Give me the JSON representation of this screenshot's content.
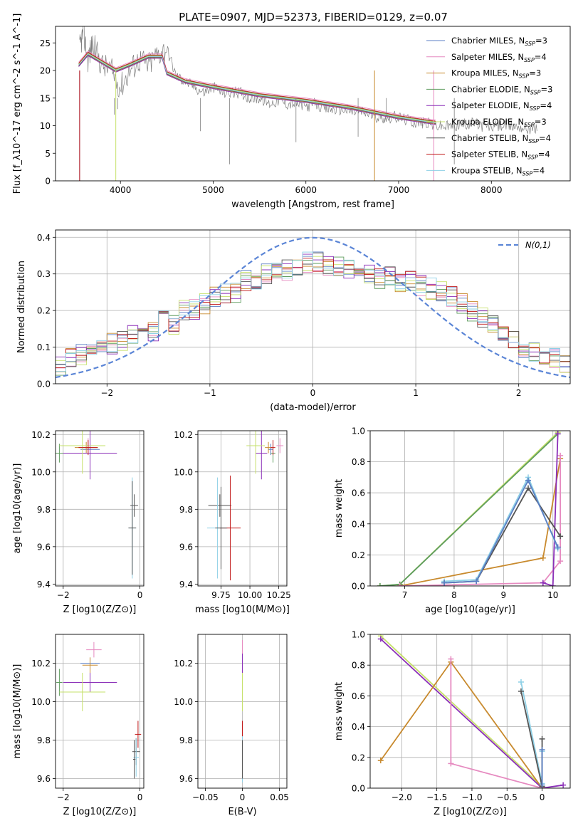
{
  "figure": {
    "title": "PLATE=0907, MJD=52373, FIBERID=0129, z=0.07"
  },
  "colors": {
    "chabrier_miles": "#5B7FC4",
    "salpeter_miles": "#E68AC0",
    "kroupa_miles": "#C88A2E",
    "chabrier_elodie": "#5E9C5E",
    "salpeter_elodie": "#8B2FB8",
    "kroupa_elodie": "#C6E06A",
    "chabrier_stelib": "#555555",
    "salpeter_stelib": "#C01818",
    "kroupa_stelib": "#8ED0E6",
    "data": "#808080",
    "normal": "#5B85D6",
    "grid": "#b0b0b0"
  },
  "chart_data": [
    {
      "id": "spectrum",
      "type": "line",
      "title": "PLATE=0907, MJD=52373, FIBERID=0129, z=0.07",
      "xlabel": "wavelength [Angstrom, rest frame]",
      "ylabel": "Flux [f_λ10^-17 erg cm^-2 s^-1 A^-1]",
      "xlim": [
        3300,
        8850
      ],
      "ylim": [
        0,
        28
      ],
      "xticks": [
        4000,
        5000,
        6000,
        7000,
        8000
      ],
      "yticks": [
        0,
        5,
        10,
        15,
        20,
        25
      ],
      "grid": false,
      "legend_position": "top-right",
      "data_series": {
        "name": "",
        "x": [
          3560,
          3600,
          3650,
          3700,
          3800,
          3900,
          4000,
          4100,
          4200,
          4300,
          4400,
          4500,
          4600,
          4700,
          4800,
          4900,
          5000,
          5100,
          5200,
          5300,
          5400,
          5500,
          5600,
          5700,
          5800,
          5900,
          6000,
          6100,
          6200,
          6300,
          6400,
          6500,
          6600,
          6700,
          6800,
          6900,
          7000,
          7100,
          7200,
          7300,
          7400,
          7500,
          7600,
          7700,
          7800,
          7900,
          8000,
          8100,
          8200,
          8300,
          8400,
          8500
        ],
        "y": [
          24,
          27,
          22,
          25,
          21,
          20,
          17,
          20,
          22,
          21,
          23,
          24,
          19,
          18,
          17,
          16,
          17,
          16,
          16,
          16,
          15,
          15,
          14,
          14.5,
          14,
          14,
          13.5,
          14,
          13,
          13,
          13,
          12.5,
          12.5,
          12,
          11.5,
          11.5,
          11.5,
          11,
          10.5,
          10.5,
          10,
          9.8,
          10,
          10.2,
          10.5,
          10,
          9.8,
          10,
          10,
          9.8,
          9.5,
          9.5
        ]
      },
      "series": [
        {
          "name": "Chabrier MILES, N_SSP=3",
          "color_key": "chabrier_miles",
          "offset": 0.0
        },
        {
          "name": "Salpeter MILES, N_SSP=4",
          "color_key": "salpeter_miles",
          "offset": 0.5
        },
        {
          "name": "Kroupa MILES, N_SSP=3",
          "color_key": "kroupa_miles",
          "offset": -0.2
        },
        {
          "name": "Chabrier ELODIE, N_SSP=3",
          "color_key": "chabrier_elodie",
          "offset": 0.2
        },
        {
          "name": "Salpeter ELODIE, N_SSP=4",
          "color_key": "salpeter_elodie",
          "offset": -0.3
        },
        {
          "name": "Kroupa ELODIE, N_SSP=3",
          "color_key": "kroupa_elodie",
          "offset": 0.1
        },
        {
          "name": "Chabrier STELIB, N_SSP=4",
          "color_key": "chabrier_stelib",
          "offset": -0.1
        },
        {
          "name": "Salpeter STELIB, N_SSP=4",
          "color_key": "salpeter_stelib",
          "offset": 0.3
        },
        {
          "name": "Kroupa STELIB, N_SSP=4",
          "color_key": "kroupa_stelib",
          "offset": 0.0
        }
      ],
      "model_x": [
        3550,
        3650,
        3800,
        3950,
        4100,
        4300,
        4450,
        4500,
        4700,
        5000,
        5500,
        6000,
        6500,
        7000,
        7400
      ],
      "model_y": [
        21,
        23,
        21.5,
        20,
        21,
        22.5,
        22.5,
        19.5,
        18,
        17,
        15.5,
        14.5,
        13.2,
        11.5,
        10.5
      ],
      "cutoffs": [
        {
          "series": "Kroupa ELODIE, N_SSP=3",
          "x": 3950
        },
        {
          "series": "Kroupa MILES, N_SSP=3",
          "x": 6740
        },
        {
          "series": "Salpeter MILES, N_SSP=4",
          "x": 7380
        },
        {
          "series": "Chabrier MILES, N_SSP=3",
          "x": 3560
        },
        {
          "series": "Salpeter STELIB, N_SSP=4",
          "x": 3560
        }
      ]
    },
    {
      "id": "residuals",
      "type": "histogram",
      "xlabel": "(data-model)/error",
      "ylabel": "Normed distribution",
      "xlim": [
        -2.5,
        2.5
      ],
      "ylim": [
        0,
        0.42
      ],
      "xticks": [
        -2,
        -1,
        0,
        1,
        2
      ],
      "yticks": [
        0.0,
        0.1,
        0.2,
        0.3,
        0.4
      ],
      "grid": true,
      "legend_position": "top-right",
      "reference_curve": {
        "name": "N(0,1)",
        "type": "normal",
        "mean": 0,
        "sigma": 1,
        "style": "dashed"
      },
      "bin_edges_start": -2.5,
      "bin_width": 0.1,
      "base_shape": [
        0.05,
        0.07,
        0.08,
        0.09,
        0.11,
        0.11,
        0.12,
        0.13,
        0.15,
        0.14,
        0.18,
        0.16,
        0.2,
        0.2,
        0.22,
        0.24,
        0.25,
        0.25,
        0.28,
        0.28,
        0.3,
        0.3,
        0.31,
        0.32,
        0.33,
        0.33,
        0.32,
        0.32,
        0.31,
        0.3,
        0.3,
        0.29,
        0.29,
        0.28,
        0.28,
        0.27,
        0.26,
        0.25,
        0.24,
        0.22,
        0.2,
        0.18,
        0.16,
        0.14,
        0.12,
        0.1,
        0.09,
        0.08,
        0.07,
        0.06
      ],
      "series": [
        {
          "name": "Chabrier MILES, N_SSP=3",
          "color_key": "chabrier_miles",
          "seed": 1
        },
        {
          "name": "Salpeter MILES, N_SSP=4",
          "color_key": "salpeter_miles",
          "seed": 2
        },
        {
          "name": "Kroupa MILES, N_SSP=3",
          "color_key": "kroupa_miles",
          "seed": 3
        },
        {
          "name": "Chabrier ELODIE, N_SSP=3",
          "color_key": "chabrier_elodie",
          "seed": 4
        },
        {
          "name": "Salpeter ELODIE, N_SSP=4",
          "color_key": "salpeter_elodie",
          "seed": 5
        },
        {
          "name": "Kroupa ELODIE, N_SSP=3",
          "color_key": "kroupa_elodie",
          "seed": 6
        },
        {
          "name": "Chabrier STELIB, N_SSP=4",
          "color_key": "chabrier_stelib",
          "seed": 7
        },
        {
          "name": "Salpeter STELIB, N_SSP=4",
          "color_key": "salpeter_stelib",
          "seed": 8
        },
        {
          "name": "Kroupa STELIB, N_SSP=4",
          "color_key": "kroupa_stelib",
          "seed": 9
        }
      ]
    },
    {
      "id": "age_vs_z",
      "type": "errorbar",
      "xlabel": "Z [log10(Z/Z⊙)]",
      "ylabel": "age  [log10(age/yr)]",
      "xlim": [
        -2.2,
        0.1
      ],
      "ylim": [
        9.39,
        10.22
      ],
      "xticks": [
        -2,
        0
      ],
      "yticks": [
        9.4,
        9.6,
        9.8,
        10.0,
        10.2
      ],
      "grid": true,
      "points": [
        {
          "color_key": "chabrier_miles",
          "x": -1.3,
          "y": 10.12,
          "xerr": 0.25,
          "yerr": 0.03
        },
        {
          "color_key": "salpeter_miles",
          "x": -1.35,
          "y": 10.14,
          "xerr": 0.2,
          "yerr": 0.04
        },
        {
          "color_key": "kroupa_miles",
          "x": -1.4,
          "y": 10.13,
          "xerr": 0.3,
          "yerr": 0.03
        },
        {
          "color_key": "chabrier_elodie",
          "x": -2.1,
          "y": 10.1,
          "xerr": 0.1,
          "yerr": 0.05
        },
        {
          "color_key": "salpeter_elodie",
          "x": -1.3,
          "y": 10.1,
          "xerr": 0.7,
          "yerr": 0.14
        },
        {
          "color_key": "kroupa_elodie",
          "x": -1.5,
          "y": 10.14,
          "xerr": 0.6,
          "yerr": 0.15
        },
        {
          "color_key": "chabrier_stelib",
          "x": -0.15,
          "y": 9.82,
          "xerr": 0.1,
          "yerr": 0.06
        },
        {
          "color_key": "salpeter_stelib",
          "x": -1.35,
          "y": 10.13,
          "xerr": 0.25,
          "yerr": 0.04
        },
        {
          "color_key": "kroupa_stelib",
          "x": -0.2,
          "y": 9.7,
          "xerr": 0.1,
          "yerr": 0.27
        },
        {
          "color_key": "chabrier_stelib",
          "x": -0.2,
          "y": 9.7,
          "xerr": 0.1,
          "yerr": 0.25
        }
      ]
    },
    {
      "id": "age_vs_mass",
      "type": "errorbar",
      "xlabel": "mass [log10(M/M⊙)]",
      "ylabel": "",
      "xlim": [
        9.55,
        10.32
      ],
      "ylim": [
        9.39,
        10.22
      ],
      "xticks": [
        9.75,
        10.0,
        10.25
      ],
      "yticks": [
        9.4,
        9.6,
        9.8,
        10.0,
        10.2
      ],
      "grid": true,
      "points": [
        {
          "color_key": "chabrier_miles",
          "x": 10.18,
          "y": 10.12,
          "xerr": 0.02,
          "yerr": 0.03
        },
        {
          "color_key": "salpeter_miles",
          "x": 10.26,
          "y": 10.14,
          "xerr": 0.03,
          "yerr": 0.04
        },
        {
          "color_key": "kroupa_miles",
          "x": 10.16,
          "y": 10.13,
          "xerr": 0.03,
          "yerr": 0.03
        },
        {
          "color_key": "chabrier_elodie",
          "x": 10.2,
          "y": 10.1,
          "xerr": 0.02,
          "yerr": 0.05
        },
        {
          "color_key": "salpeter_elodie",
          "x": 10.1,
          "y": 10.1,
          "xerr": 0.05,
          "yerr": 0.14
        },
        {
          "color_key": "kroupa_elodie",
          "x": 10.05,
          "y": 10.14,
          "xerr": 0.08,
          "yerr": 0.15
        },
        {
          "color_key": "chabrier_stelib",
          "x": 9.74,
          "y": 9.82,
          "xerr": 0.1,
          "yerr": 0.06
        },
        {
          "color_key": "salpeter_stelib",
          "x": 10.2,
          "y": 10.13,
          "xerr": 0.02,
          "yerr": 0.04
        },
        {
          "color_key": "kroupa_stelib",
          "x": 9.72,
          "y": 9.7,
          "xerr": 0.09,
          "yerr": 0.27
        },
        {
          "color_key": "salpeter_stelib",
          "x": 9.83,
          "y": 9.7,
          "xerr": 0.09,
          "yerr": 0.28
        },
        {
          "color_key": "chabrier_stelib",
          "x": 9.75,
          "y": 9.7,
          "xerr": 0.05,
          "yerr": 0.22
        }
      ]
    },
    {
      "id": "weight_vs_age",
      "type": "line",
      "xlabel": "age  [log10(age/yr)]",
      "ylabel": "mass weight",
      "xlim": [
        6.3,
        10.35
      ],
      "ylim": [
        0,
        1.0
      ],
      "xticks": [
        7,
        8,
        9,
        10
      ],
      "yticks": [
        0.0,
        0.2,
        0.4,
        0.6,
        0.8,
        1.0
      ],
      "grid": true,
      "series": [
        {
          "color_key": "kroupa_elodie",
          "x": [
            6.5,
            6.9,
            10.1
          ],
          "y": [
            0.0,
            0.01,
            0.99
          ]
        },
        {
          "color_key": "chabrier_elodie",
          "x": [
            6.5,
            6.9,
            10.1
          ],
          "y": [
            0.0,
            0.01,
            0.98
          ]
        },
        {
          "color_key": "kroupa_miles",
          "x": [
            6.9,
            9.8,
            10.15
          ],
          "y": [
            0.0,
            0.18,
            0.82
          ]
        },
        {
          "color_key": "salpeter_miles",
          "x": [
            6.9,
            9.8,
            10.15,
            10.15
          ],
          "y": [
            0.0,
            0.02,
            0.16,
            0.84
          ]
        },
        {
          "color_key": "salpeter_elodie",
          "x": [
            9.8,
            10.0,
            10.1
          ],
          "y": [
            0.02,
            0.0,
            0.98
          ]
        },
        {
          "color_key": "kroupa_stelib",
          "x": [
            7.8,
            8.45,
            9.5,
            10.1
          ],
          "y": [
            0.03,
            0.04,
            0.7,
            0.24
          ]
        },
        {
          "color_key": "chabrier_stelib",
          "x": [
            7.8,
            8.45,
            9.5,
            10.15
          ],
          "y": [
            0.02,
            0.03,
            0.63,
            0.32
          ]
        },
        {
          "color_key": "chabrier_miles",
          "x": [
            7.8,
            8.45,
            9.5,
            10.1
          ],
          "y": [
            0.02,
            0.03,
            0.68,
            0.25
          ]
        }
      ]
    },
    {
      "id": "mass_vs_z",
      "type": "errorbar",
      "xlabel": "Z [log10(Z/Z⊙)]",
      "ylabel": "mass [log10(M/M⊙)]",
      "xlim": [
        -2.2,
        0.1
      ],
      "ylim": [
        9.55,
        10.35
      ],
      "xticks": [
        -2,
        0
      ],
      "yticks": [
        9.6,
        9.8,
        10.0,
        10.2
      ],
      "grid": true,
      "points": [
        {
          "color_key": "chabrier_miles",
          "x": -1.3,
          "y": 10.2,
          "xerr": 0.25,
          "yerr": 0.03
        },
        {
          "color_key": "salpeter_miles",
          "x": -1.2,
          "y": 10.27,
          "xerr": 0.2,
          "yerr": 0.04
        },
        {
          "color_key": "kroupa_miles",
          "x": -1.3,
          "y": 10.19,
          "xerr": 0.2,
          "yerr": 0.04
        },
        {
          "color_key": "chabrier_elodie",
          "x": -2.1,
          "y": 10.1,
          "xerr": 0.08,
          "yerr": 0.07
        },
        {
          "color_key": "salpeter_elodie",
          "x": -1.3,
          "y": 10.1,
          "xerr": 0.7,
          "yerr": 0.05
        },
        {
          "color_key": "kroupa_elodie",
          "x": -1.5,
          "y": 10.05,
          "xerr": 0.6,
          "yerr": 0.1
        },
        {
          "color_key": "chabrier_stelib",
          "x": -0.1,
          "y": 9.74,
          "xerr": 0.1,
          "yerr": 0.07
        },
        {
          "color_key": "salpeter_stelib",
          "x": -0.05,
          "y": 9.83,
          "xerr": 0.08,
          "yerr": 0.07
        },
        {
          "color_key": "kroupa_stelib",
          "x": -0.1,
          "y": 9.71,
          "xerr": 0.07,
          "yerr": 0.1
        },
        {
          "color_key": "chabrier_stelib",
          "x": -0.15,
          "y": 9.7,
          "xerr": 0.03,
          "yerr": 0.1
        }
      ]
    },
    {
      "id": "mass_vs_ebv",
      "type": "errorbar",
      "xlabel": "E(B-V)",
      "ylabel": "",
      "xlim": [
        -0.06,
        0.06
      ],
      "ylim": [
        9.55,
        10.35
      ],
      "xticks": [
        -0.05,
        0.0,
        0.05
      ],
      "yticks": [
        9.6,
        9.8,
        10.0,
        10.2
      ],
      "grid": true,
      "points": [
        {
          "color_key": "salpeter_miles",
          "x": 0.0,
          "y": 10.2,
          "xerr": 0.0,
          "yerr": 0.12
        },
        {
          "color_key": "salpeter_elodie",
          "x": 0.0,
          "y": 10.2,
          "xerr": 0.0,
          "yerr": 0.05
        },
        {
          "color_key": "kroupa_elodie",
          "x": 0.0,
          "y": 10.05,
          "xerr": 0.0,
          "yerr": 0.1
        },
        {
          "color_key": "salpeter_stelib",
          "x": 0.0,
          "y": 9.83,
          "xerr": 0.0,
          "yerr": 0.07
        },
        {
          "color_key": "kroupa_stelib",
          "x": 0.0,
          "y": 9.7,
          "xerr": 0.0,
          "yerr": 0.12
        },
        {
          "color_key": "chabrier_stelib",
          "x": 0.0,
          "y": 9.7,
          "xerr": 0.0,
          "yerr": 0.1
        }
      ]
    },
    {
      "id": "weight_vs_z",
      "type": "line",
      "xlabel": "Z [log10(Z/Z⊙)]",
      "ylabel": "mass weight",
      "xlim": [
        -2.45,
        0.4
      ],
      "ylim": [
        0,
        1.0
      ],
      "xticks": [
        -2.0,
        -1.5,
        -1.0,
        -0.5,
        0.0
      ],
      "yticks": [
        0.0,
        0.2,
        0.4,
        0.6,
        0.8,
        1.0
      ],
      "grid": true,
      "series": [
        {
          "color_key": "kroupa_elodie",
          "x": [
            -2.3,
            0.0
          ],
          "y": [
            0.99,
            0.01
          ]
        },
        {
          "color_key": "salpeter_elodie",
          "x": [
            -2.3,
            0.0,
            0.3
          ],
          "y": [
            0.97,
            0.0,
            0.02
          ]
        },
        {
          "color_key": "kroupa_miles",
          "x": [
            -2.3,
            -1.3,
            0.0
          ],
          "y": [
            0.18,
            0.82,
            0.0
          ]
        },
        {
          "color_key": "salpeter_miles",
          "x": [
            -1.3,
            -1.3,
            0.0
          ],
          "y": [
            0.84,
            0.16,
            0.0
          ]
        },
        {
          "color_key": "kroupa_stelib",
          "x": [
            -0.3,
            0.0,
            0.0
          ],
          "y": [
            0.69,
            0.03,
            0.24
          ]
        },
        {
          "color_key": "chabrier_stelib",
          "x": [
            -0.3,
            0.0,
            0.0
          ],
          "y": [
            0.63,
            0.01,
            0.32
          ]
        },
        {
          "color_key": "chabrier_miles",
          "x": [
            0.0,
            0.0
          ],
          "y": [
            0.25,
            0.02
          ]
        }
      ]
    }
  ]
}
